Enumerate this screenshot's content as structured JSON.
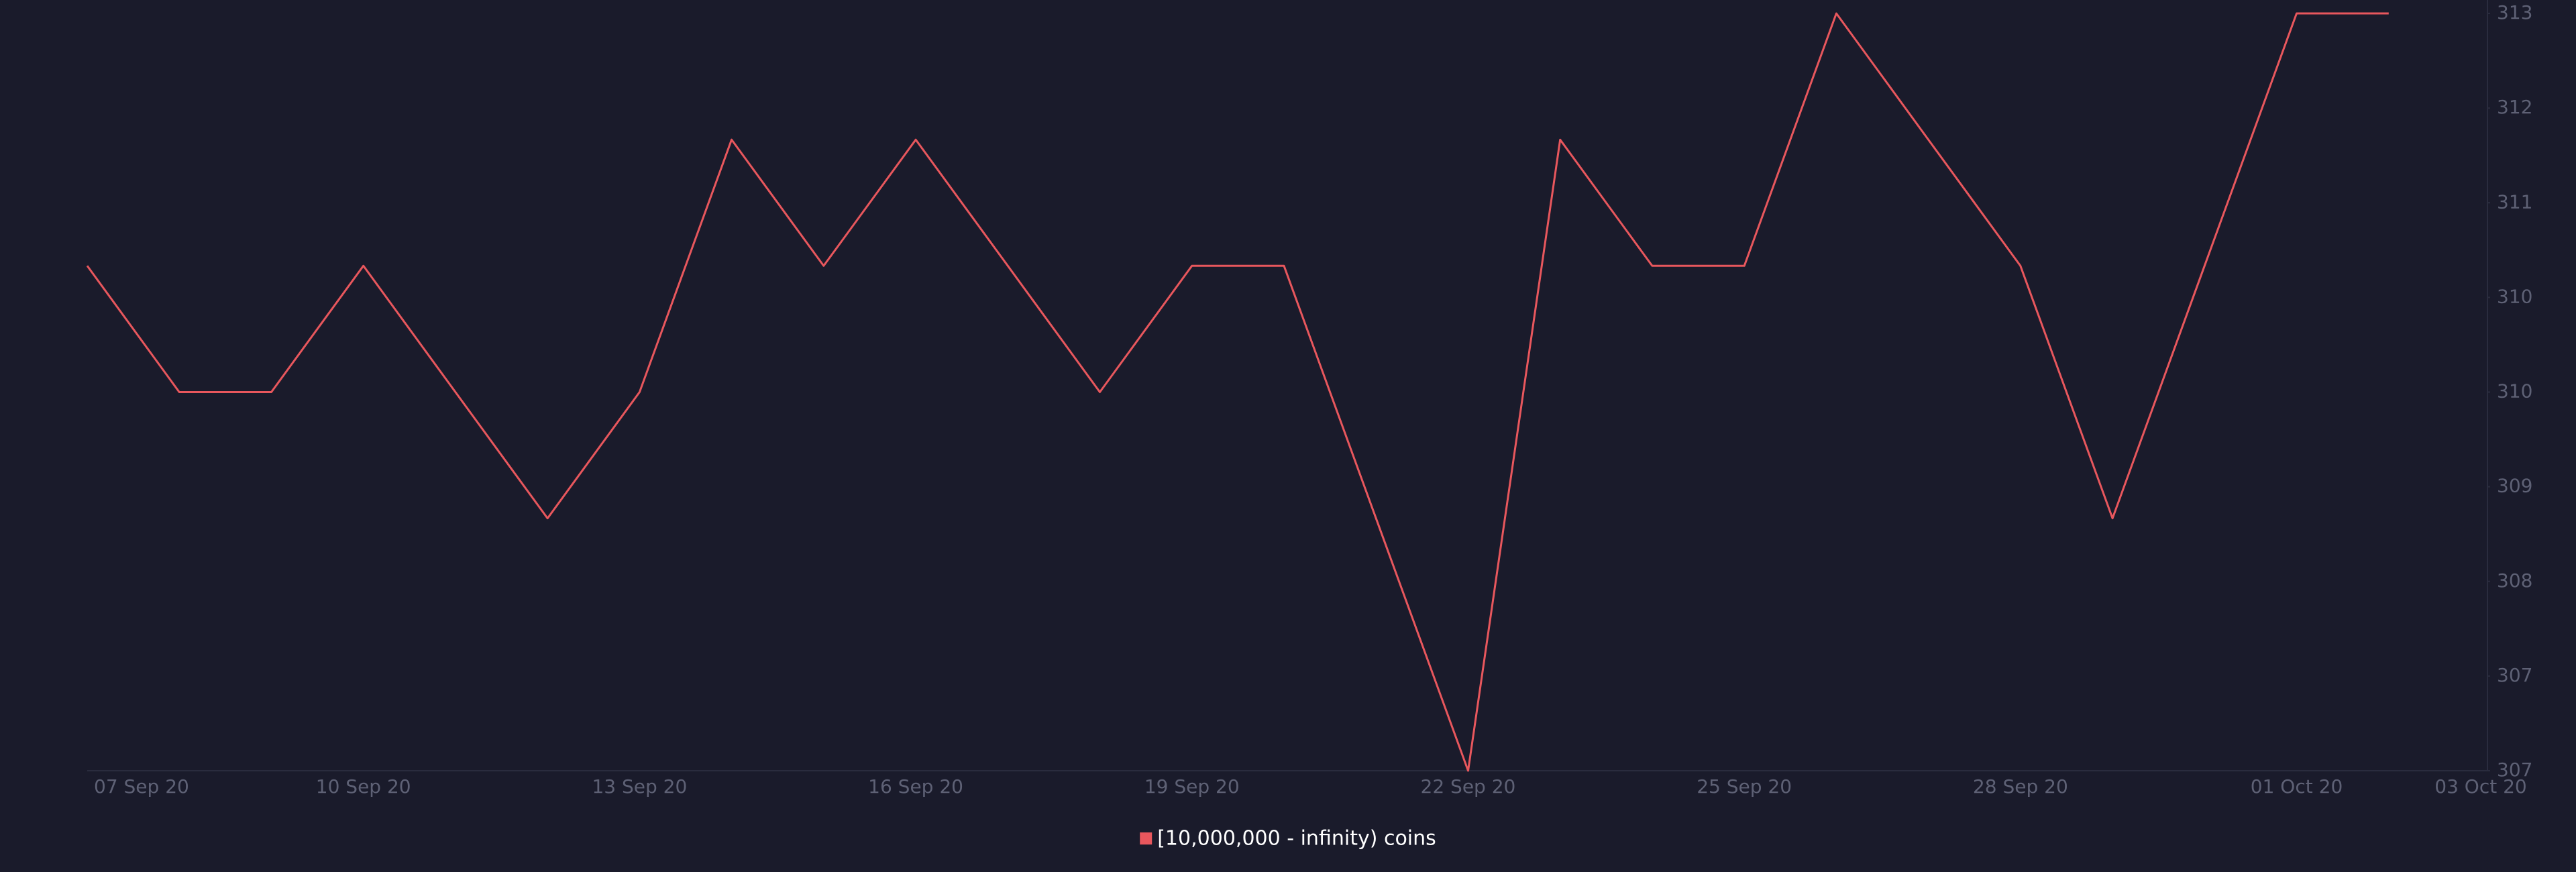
{
  "chart_data": {
    "type": "line",
    "categories": [
      "07 Sep 20",
      null,
      null,
      "10 Sep 20",
      null,
      null,
      "13 Sep 20",
      null,
      null,
      "16 Sep 20",
      null,
      null,
      "19 Sep 20",
      null,
      null,
      "22 Sep 20",
      null,
      null,
      "25 Sep 20",
      null,
      null,
      "28 Sep 20",
      null,
      null,
      "01 Oct 20",
      null,
      "03 Oct 20"
    ],
    "series": [
      {
        "name": "[10,000,000 - infinity) coins",
        "color": "#e8575d",
        "values": [
          311,
          310,
          310,
          311,
          310,
          309,
          310,
          312,
          311,
          312,
          311,
          310,
          311,
          311,
          309,
          307,
          312,
          311,
          311,
          313,
          312,
          311,
          309,
          311,
          313,
          313,
          null
        ]
      }
    ],
    "ylim": [
      307,
      313
    ],
    "yticks": [
      {
        "value": 307,
        "label": "307"
      },
      {
        "value": 307.75,
        "label": "307"
      },
      {
        "value": 308.5,
        "label": "308"
      },
      {
        "value": 309.25,
        "label": "309"
      },
      {
        "value": 310,
        "label": "310"
      },
      {
        "value": 310.75,
        "label": "310"
      },
      {
        "value": 311.5,
        "label": "311"
      },
      {
        "value": 312.25,
        "label": "312"
      },
      {
        "value": 313,
        "label": "313"
      }
    ],
    "y_axis_side": "right",
    "legend": "bottom"
  }
}
